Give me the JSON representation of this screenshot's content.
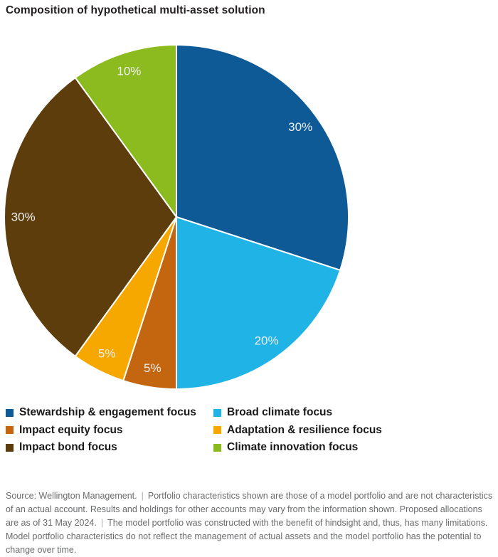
{
  "chart_data": {
    "type": "pie",
    "title": "Composition of hypothetical multi-asset solution",
    "unit": "%",
    "start_angle_deg": 0,
    "direction": "clockwise",
    "legend_position": "bottom",
    "label_color": "#edeff0",
    "slices": [
      {
        "name": "Stewardship & engagement focus",
        "value": 30,
        "label": "30%",
        "color": "#0d5a96"
      },
      {
        "name": "Broad climate focus",
        "value": 20,
        "label": "20%",
        "color": "#20b4e6"
      },
      {
        "name": "Impact equity focus",
        "value": 5,
        "label": "5%",
        "color": "#c4660f"
      },
      {
        "name": "Adaptation & resilience focus",
        "value": 5,
        "label": "5%",
        "color": "#f7a800"
      },
      {
        "name": "Impact bond focus",
        "value": 30,
        "label": "30%",
        "color": "#5e3d0c"
      },
      {
        "name": "Climate innovation focus",
        "value": 10,
        "label": "10%",
        "color": "#8cbb20"
      }
    ]
  },
  "footer": {
    "separator": "|",
    "segments": [
      "Source: Wellington Management.",
      "Portfolio characteristics shown are those of a model portfolio and are not characteristics of an actual account. Results and holdings for other accounts may vary from the information shown. Proposed allocations are as of 31 May 2024.",
      "The model portfolio was constructed with the benefit of hindsight and, thus, has many limitations. Model portfolio characteristics do not reflect the management of actual assets and the model portfolio has the potential to change over time."
    ]
  }
}
